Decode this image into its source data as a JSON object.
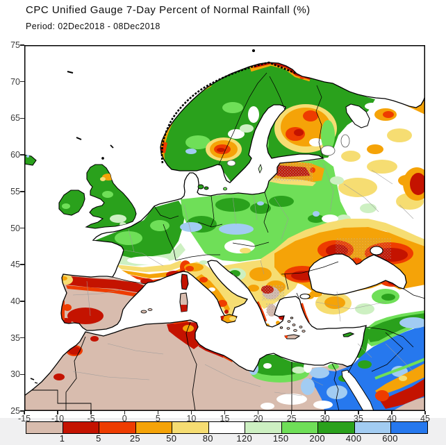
{
  "header": {
    "title": "CPC Unified Gauge 7-Day Percent of Normal Rainfall (%)",
    "period": "Period: 02Dec2018 - 08Dec2018"
  },
  "axes": {
    "lat_ticks": [
      "75",
      "70",
      "65",
      "60",
      "55",
      "50",
      "45",
      "40",
      "35",
      "30",
      "25"
    ],
    "lon_ticks": [
      "-15",
      "-10",
      "-5",
      "0",
      "5",
      "10",
      "15",
      "20",
      "25",
      "30",
      "35",
      "40",
      "45"
    ]
  },
  "colorbar": {
    "boundary_labels": [
      "1",
      "5",
      "25",
      "50",
      "80",
      "120",
      "150",
      "200",
      "400",
      "600"
    ],
    "colors": [
      "#d8bcae",
      "#c41300",
      "#ee3c00",
      "#f5a308",
      "#f6dd72",
      "#ffffff",
      "#cdf0c2",
      "#6fdf58",
      "#2aa11c",
      "#a2ccf2",
      "#2678ee"
    ]
  },
  "chart_data": {
    "type": "choropleth_map",
    "title": "CPC Unified Gauge 7-Day Percent of Normal Rainfall (%)",
    "period": "02Dec2018 - 08Dec2018",
    "variable": "Percent of Normal Rainfall",
    "units": "%",
    "region": "Europe / North Africa / Middle East",
    "lon_range": [
      -15,
      45
    ],
    "lat_range": [
      25,
      75
    ],
    "scale": {
      "thresholds": [
        1,
        5,
        25,
        50,
        80,
        120,
        150,
        200,
        400,
        600
      ],
      "colors": [
        "#d8bcae",
        "#c41300",
        "#ee3c00",
        "#f5a308",
        "#f6dd72",
        "#ffffff",
        "#cdf0c2",
        "#6fdf58",
        "#2aa11c",
        "#a2ccf2",
        "#2678ee"
      ],
      "meaning": "percent of normal rainfall, tan = below 1%, blue = above 600%"
    },
    "notable_features": [
      "Iberia and North Africa mostly below 1% of normal (tan) with dark red pockets",
      "UK, northern France, central/eastern Europe 150-400% (green)",
      "Southern Finland, Baltics, Black Sea region 1-25% (red/orange)",
      "Egypt, Levant and NE Africa coast above 400-600% (blue)"
    ]
  }
}
